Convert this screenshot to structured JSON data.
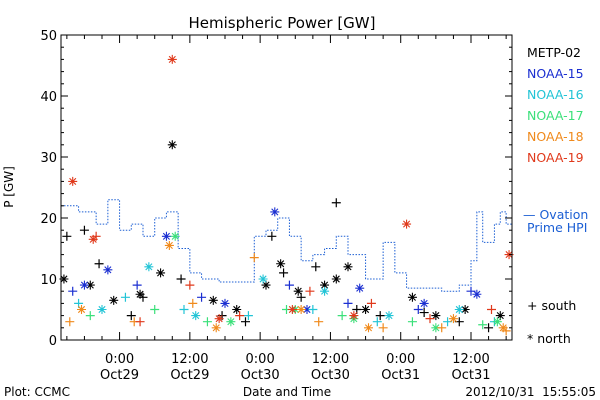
{
  "chart_data": {
    "type": "scatter",
    "title": "Hemispheric Power [GW]",
    "ylabel": "P [GW]",
    "xlabel": "Date and Time",
    "ylim": [
      0,
      50
    ],
    "yticks": [
      0,
      10,
      20,
      30,
      40,
      50
    ],
    "xlim": [
      "2012-10-28 14:00",
      "2012-10-31 19:00"
    ],
    "xticks": [
      {
        "time": "2012-10-29 00:00",
        "hour": "0:00",
        "day": "Oct29"
      },
      {
        "time": "2012-10-29 12:00",
        "hour": "12:00",
        "day": "Oct29"
      },
      {
        "time": "2012-10-30 00:00",
        "hour": "0:00",
        "day": "Oct30"
      },
      {
        "time": "2012-10-30 12:00",
        "hour": "12:00",
        "day": "Oct30"
      },
      {
        "time": "2012-10-31 00:00",
        "hour": "0:00",
        "day": "Oct31"
      },
      {
        "time": "2012-10-31 12:00",
        "hour": "12:00",
        "day": "Oct31"
      }
    ],
    "series": [
      {
        "name": "METP-02",
        "color": "#000000",
        "south": [
          [
            "2012-10-28 15:00",
            17
          ],
          [
            "2012-10-28 18:00",
            18
          ],
          [
            "2012-10-28 20:30",
            12.5
          ],
          [
            "2012-10-29 02:00",
            4
          ],
          [
            "2012-10-29 04:00",
            7
          ],
          [
            "2012-10-29 10:30",
            10
          ],
          [
            "2012-10-29 17:30",
            4
          ],
          [
            "2012-10-29 21:30",
            3
          ],
          [
            "2012-10-30 02:00",
            17
          ],
          [
            "2012-10-30 04:00",
            11
          ],
          [
            "2012-10-30 07:00",
            7
          ],
          [
            "2012-10-30 09:30",
            12
          ],
          [
            "2012-10-30 13:00",
            22.5
          ],
          [
            "2012-10-30 16:30",
            5
          ],
          [
            "2012-10-30 20:30",
            4
          ],
          [
            "2012-10-31 04:00",
            4.5
          ],
          [
            "2012-10-31 10:00",
            3
          ],
          [
            "2012-10-31 15:00",
            2
          ]
        ],
        "north": [
          [
            "2012-10-28 14:30",
            10
          ],
          [
            "2012-10-28 19:00",
            9
          ],
          [
            "2012-10-28 23:00",
            6.5
          ],
          [
            "2012-10-29 03:30",
            7.5
          ],
          [
            "2012-10-29 07:00",
            11
          ],
          [
            "2012-10-29 09:00",
            32
          ],
          [
            "2012-10-29 16:00",
            6.5
          ],
          [
            "2012-10-29 20:00",
            5
          ],
          [
            "2012-10-30 01:00",
            9
          ],
          [
            "2012-10-30 03:30",
            12.5
          ],
          [
            "2012-10-30 06:30",
            8
          ],
          [
            "2012-10-30 11:00",
            9
          ],
          [
            "2012-10-30 13:00",
            10
          ],
          [
            "2012-10-30 15:00",
            12
          ],
          [
            "2012-10-30 18:00",
            5
          ],
          [
            "2012-10-31 02:00",
            7
          ],
          [
            "2012-10-31 06:00",
            4
          ],
          [
            "2012-10-31 11:00",
            5
          ],
          [
            "2012-10-31 17:00",
            4
          ]
        ]
      },
      {
        "name": "NOAA-15",
        "color": "#1b2fd1",
        "south": [
          [
            "2012-10-28 16:00",
            8
          ],
          [
            "2012-10-29 03:00",
            9
          ],
          [
            "2012-10-29 14:00",
            7
          ],
          [
            "2012-10-30 05:00",
            9
          ],
          [
            "2012-10-30 15:00",
            6
          ],
          [
            "2012-10-31 03:00",
            5
          ],
          [
            "2012-10-31 12:00",
            8
          ]
        ],
        "north": [
          [
            "2012-10-28 18:00",
            9
          ],
          [
            "2012-10-28 22:00",
            11.5
          ],
          [
            "2012-10-29 08:00",
            17
          ],
          [
            "2012-10-29 18:00",
            6
          ],
          [
            "2012-10-30 02:30",
            21
          ],
          [
            "2012-10-30 08:00",
            5
          ],
          [
            "2012-10-30 17:00",
            8.5
          ],
          [
            "2012-10-31 04:00",
            6
          ],
          [
            "2012-10-31 13:00",
            7.5
          ]
        ]
      },
      {
        "name": "NOAA-16",
        "color": "#22c4d6",
        "south": [
          [
            "2012-10-28 17:00",
            6
          ],
          [
            "2012-10-29 01:00",
            7
          ],
          [
            "2012-10-29 11:00",
            5
          ],
          [
            "2012-10-29 22:00",
            4
          ],
          [
            "2012-10-30 09:00",
            5
          ],
          [
            "2012-10-30 20:00",
            3
          ],
          [
            "2012-10-31 08:00",
            3
          ],
          [
            "2012-10-31 16:00",
            3
          ]
        ],
        "north": [
          [
            "2012-10-28 21:00",
            5
          ],
          [
            "2012-10-29 05:00",
            12
          ],
          [
            "2012-10-29 13:00",
            4
          ],
          [
            "2012-10-30 00:30",
            10
          ],
          [
            "2012-10-30 11:00",
            8
          ],
          [
            "2012-10-30 22:00",
            4
          ],
          [
            "2012-10-31 10:00",
            5
          ]
        ]
      },
      {
        "name": "NOAA-17",
        "color": "#3be07a",
        "south": [
          [
            "2012-10-28 19:00",
            4
          ],
          [
            "2012-10-29 06:00",
            5
          ],
          [
            "2012-10-29 15:00",
            3
          ],
          [
            "2012-10-30 04:30",
            5
          ],
          [
            "2012-10-30 14:00",
            4
          ],
          [
            "2012-10-31 02:00",
            3
          ],
          [
            "2012-10-31 14:00",
            2.5
          ]
        ],
        "north": [
          [
            "2012-10-29 09:30",
            17
          ],
          [
            "2012-10-29 19:00",
            3
          ],
          [
            "2012-10-30 06:00",
            5
          ],
          [
            "2012-10-30 16:00",
            3.5
          ],
          [
            "2012-10-31 06:00",
            2
          ],
          [
            "2012-10-31 16:30",
            3
          ]
        ]
      },
      {
        "name": "NOAA-18",
        "color": "#f08a1c",
        "south": [
          [
            "2012-10-28 15:30",
            3
          ],
          [
            "2012-10-29 02:30",
            3
          ],
          [
            "2012-10-29 12:30",
            6
          ],
          [
            "2012-10-29 23:00",
            13.5
          ],
          [
            "2012-10-30 10:00",
            3
          ],
          [
            "2012-10-30 21:00",
            2
          ],
          [
            "2012-10-31 07:00",
            2
          ],
          [
            "2012-10-31 18:00",
            1.5
          ]
        ],
        "north": [
          [
            "2012-10-28 17:30",
            5
          ],
          [
            "2012-10-29 08:30",
            15.5
          ],
          [
            "2012-10-29 16:30",
            2
          ],
          [
            "2012-10-30 07:00",
            5
          ],
          [
            "2012-10-30 18:30",
            2
          ],
          [
            "2012-10-31 09:00",
            3.5
          ],
          [
            "2012-10-31 17:30",
            2
          ]
        ]
      },
      {
        "name": "NOAA-19",
        "color": "#e0391b",
        "south": [
          [
            "2012-10-28 20:00",
            17
          ],
          [
            "2012-10-29 03:30",
            3
          ],
          [
            "2012-10-29 12:00",
            9
          ],
          [
            "2012-10-29 20:30",
            4
          ],
          [
            "2012-10-30 08:30",
            8
          ],
          [
            "2012-10-30 19:00",
            6
          ],
          [
            "2012-10-31 05:00",
            3.5
          ],
          [
            "2012-10-31 15:30",
            5
          ]
        ],
        "north": [
          [
            "2012-10-28 16:00",
            26
          ],
          [
            "2012-10-28 19:30",
            16.5
          ],
          [
            "2012-10-29 09:00",
            46
          ],
          [
            "2012-10-29 17:00",
            3.5
          ],
          [
            "2012-10-30 05:30",
            5
          ],
          [
            "2012-10-30 16:00",
            4
          ],
          [
            "2012-10-31 01:00",
            19
          ],
          [
            "2012-10-31 18:30",
            14
          ]
        ]
      }
    ],
    "ovation": {
      "name": "Ovation Prime HPI",
      "label_lines": [
        "— Ovation",
        "Prime HPI"
      ],
      "color": "#1c5fd4",
      "values": [
        [
          "2012-10-28 14:00",
          22
        ],
        [
          "2012-10-28 17:00",
          21
        ],
        [
          "2012-10-28 20:00",
          19
        ],
        [
          "2012-10-28 22:00",
          23
        ],
        [
          "2012-10-29 00:00",
          18
        ],
        [
          "2012-10-29 02:00",
          19
        ],
        [
          "2012-10-29 04:00",
          17
        ],
        [
          "2012-10-29 06:00",
          20
        ],
        [
          "2012-10-29 08:00",
          21
        ],
        [
          "2012-10-29 10:00",
          15
        ],
        [
          "2012-10-29 12:00",
          11
        ],
        [
          "2012-10-29 14:00",
          10
        ],
        [
          "2012-10-29 17:00",
          9.5
        ],
        [
          "2012-10-29 20:00",
          9.5
        ],
        [
          "2012-10-29 23:00",
          17
        ],
        [
          "2012-10-30 01:00",
          18
        ],
        [
          "2012-10-30 03:00",
          20
        ],
        [
          "2012-10-30 05:00",
          17
        ],
        [
          "2012-10-30 07:00",
          13
        ],
        [
          "2012-10-30 09:00",
          14
        ],
        [
          "2012-10-30 11:00",
          15
        ],
        [
          "2012-10-30 13:00",
          17
        ],
        [
          "2012-10-30 15:00",
          14
        ],
        [
          "2012-10-30 18:00",
          10
        ],
        [
          "2012-10-30 21:00",
          16
        ],
        [
          "2012-10-30 23:00",
          11
        ],
        [
          "2012-10-31 01:00",
          8.5
        ],
        [
          "2012-10-31 04:00",
          8.5
        ],
        [
          "2012-10-31 07:00",
          8
        ],
        [
          "2012-10-31 10:00",
          9
        ],
        [
          "2012-10-31 12:00",
          13
        ],
        [
          "2012-10-31 13:00",
          21
        ],
        [
          "2012-10-31 14:00",
          16
        ],
        [
          "2012-10-31 16:00",
          19
        ],
        [
          "2012-10-31 17:00",
          21
        ],
        [
          "2012-10-31 18:00",
          19
        ],
        [
          "2012-10-31 19:00",
          9
        ]
      ]
    },
    "legend_placement": "right",
    "marker_legend": {
      "south": "+ south",
      "north": "* north"
    },
    "grid": false
  },
  "footer": {
    "plot_credit": "Plot: CCMC",
    "timestamp": "2012/10/31  15:55:05"
  }
}
